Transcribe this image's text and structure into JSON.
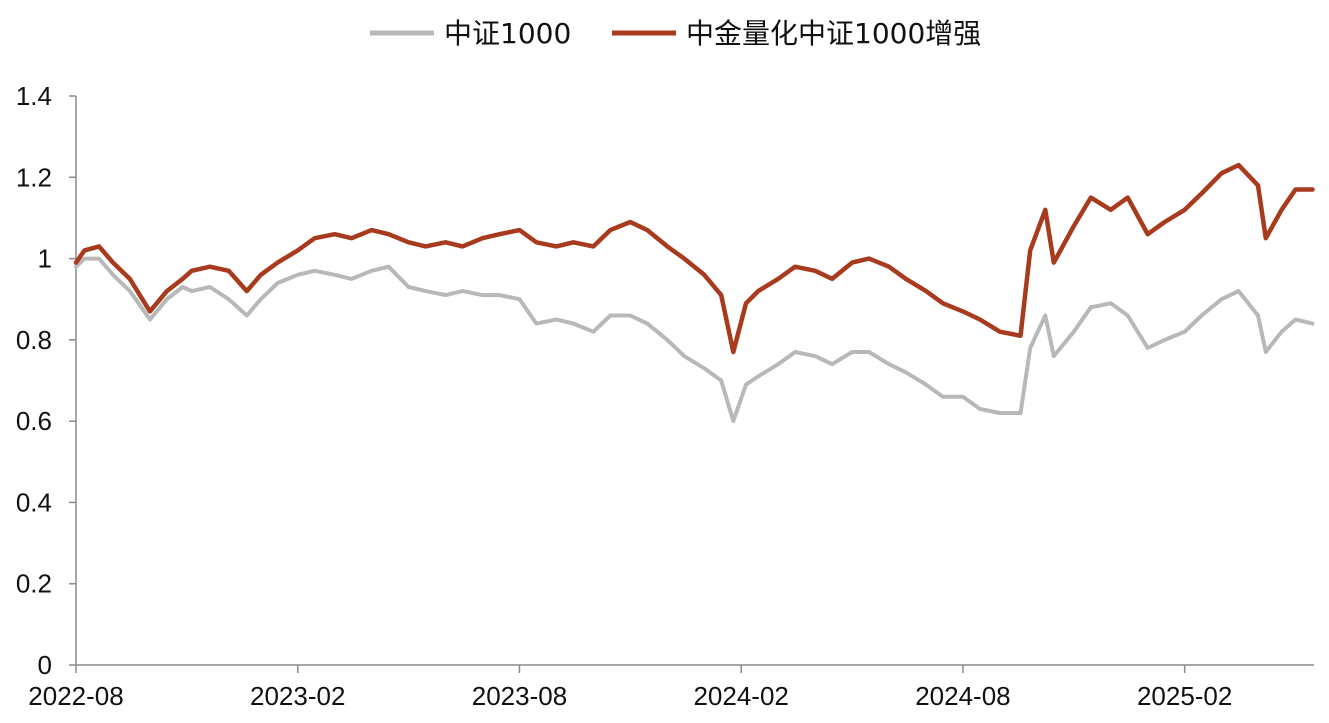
{
  "chart_data": {
    "type": "line",
    "title": "",
    "xlabel": "",
    "ylabel": "",
    "x_ticks": [
      "2022-08",
      "2023-02",
      "2023-08",
      "2024-02",
      "2024-08",
      "2025-02"
    ],
    "x_range": [
      "2022-08",
      "2025-05"
    ],
    "ylim": [
      0,
      1.4
    ],
    "y_ticks": [
      0,
      0.2,
      0.4,
      0.6,
      0.8,
      1,
      1.2,
      1.4
    ],
    "y_tick_labels": [
      "0",
      "0.2",
      "0.4",
      "0.6",
      "0.8",
      "1",
      "1.2",
      "1.4"
    ],
    "grid": false,
    "legend": "top-center",
    "series": [
      {
        "name": "中证1000",
        "color": "#b8b8b8",
        "x": [
          "2022-08-01",
          "2022-08-08",
          "2022-08-20",
          "2022-09-01",
          "2022-09-15",
          "2022-10-01",
          "2022-10-15",
          "2022-10-28",
          "2022-11-05",
          "2022-11-20",
          "2022-12-05",
          "2022-12-20",
          "2023-01-01",
          "2023-01-15",
          "2023-02-01",
          "2023-02-15",
          "2023-03-01",
          "2023-03-15",
          "2023-04-01",
          "2023-04-15",
          "2023-05-01",
          "2023-05-15",
          "2023-06-01",
          "2023-06-15",
          "2023-07-01",
          "2023-07-15",
          "2023-08-01",
          "2023-08-15",
          "2023-09-01",
          "2023-09-15",
          "2023-10-01",
          "2023-10-15",
          "2023-11-01",
          "2023-11-15",
          "2023-12-01",
          "2023-12-15",
          "2024-01-01",
          "2024-01-15",
          "2024-01-25",
          "2024-02-05",
          "2024-02-15",
          "2024-03-01",
          "2024-03-15",
          "2024-04-01",
          "2024-04-15",
          "2024-05-01",
          "2024-05-15",
          "2024-06-01",
          "2024-06-15",
          "2024-07-01",
          "2024-07-15",
          "2024-08-01",
          "2024-08-15",
          "2024-09-01",
          "2024-09-18",
          "2024-09-26",
          "2024-10-08",
          "2024-10-15",
          "2024-11-01",
          "2024-11-15",
          "2024-12-01",
          "2024-12-15",
          "2025-01-01",
          "2025-01-15",
          "2025-02-01",
          "2025-02-15",
          "2025-03-01",
          "2025-03-15",
          "2025-03-31",
          "2025-04-07",
          "2025-04-20",
          "2025-05-01",
          "2025-05-15"
        ],
        "values": [
          0.98,
          1.0,
          1.0,
          0.96,
          0.92,
          0.85,
          0.9,
          0.93,
          0.92,
          0.93,
          0.9,
          0.86,
          0.9,
          0.94,
          0.96,
          0.97,
          0.96,
          0.95,
          0.97,
          0.98,
          0.93,
          0.92,
          0.91,
          0.92,
          0.91,
          0.91,
          0.9,
          0.84,
          0.85,
          0.84,
          0.82,
          0.86,
          0.86,
          0.84,
          0.8,
          0.76,
          0.73,
          0.7,
          0.6,
          0.69,
          0.71,
          0.74,
          0.77,
          0.76,
          0.74,
          0.77,
          0.77,
          0.74,
          0.72,
          0.69,
          0.66,
          0.66,
          0.63,
          0.62,
          0.62,
          0.78,
          0.86,
          0.76,
          0.82,
          0.88,
          0.89,
          0.86,
          0.78,
          0.8,
          0.82,
          0.86,
          0.9,
          0.92,
          0.86,
          0.77,
          0.82,
          0.85,
          0.84
        ]
      },
      {
        "name": "中金量化中证1000增强",
        "color": "#a83a1e",
        "x": [
          "2022-08-01",
          "2022-08-08",
          "2022-08-20",
          "2022-09-01",
          "2022-09-15",
          "2022-10-01",
          "2022-10-15",
          "2022-10-28",
          "2022-11-05",
          "2022-11-20",
          "2022-12-05",
          "2022-12-20",
          "2023-01-01",
          "2023-01-15",
          "2023-02-01",
          "2023-02-15",
          "2023-03-01",
          "2023-03-15",
          "2023-04-01",
          "2023-04-15",
          "2023-05-01",
          "2023-05-15",
          "2023-06-01",
          "2023-06-15",
          "2023-07-01",
          "2023-07-15",
          "2023-08-01",
          "2023-08-15",
          "2023-09-01",
          "2023-09-15",
          "2023-10-01",
          "2023-10-15",
          "2023-11-01",
          "2023-11-15",
          "2023-12-01",
          "2023-12-15",
          "2024-01-01",
          "2024-01-15",
          "2024-01-25",
          "2024-02-05",
          "2024-02-15",
          "2024-03-01",
          "2024-03-15",
          "2024-04-01",
          "2024-04-15",
          "2024-05-01",
          "2024-05-15",
          "2024-06-01",
          "2024-06-15",
          "2024-07-01",
          "2024-07-15",
          "2024-08-01",
          "2024-08-15",
          "2024-09-01",
          "2024-09-18",
          "2024-09-26",
          "2024-10-08",
          "2024-10-15",
          "2024-11-01",
          "2024-11-15",
          "2024-12-01",
          "2024-12-15",
          "2025-01-01",
          "2025-01-15",
          "2025-02-01",
          "2025-02-15",
          "2025-03-01",
          "2025-03-15",
          "2025-03-31",
          "2025-04-07",
          "2025-04-20",
          "2025-05-01",
          "2025-05-15"
        ],
        "values": [
          0.99,
          1.02,
          1.03,
          0.99,
          0.95,
          0.87,
          0.92,
          0.95,
          0.97,
          0.98,
          0.97,
          0.92,
          0.96,
          0.99,
          1.02,
          1.05,
          1.06,
          1.05,
          1.07,
          1.06,
          1.04,
          1.03,
          1.04,
          1.03,
          1.05,
          1.06,
          1.07,
          1.04,
          1.03,
          1.04,
          1.03,
          1.07,
          1.09,
          1.07,
          1.03,
          1.0,
          0.96,
          0.91,
          0.77,
          0.89,
          0.92,
          0.95,
          0.98,
          0.97,
          0.95,
          0.99,
          1.0,
          0.98,
          0.95,
          0.92,
          0.89,
          0.87,
          0.85,
          0.82,
          0.81,
          1.02,
          1.12,
          0.99,
          1.08,
          1.15,
          1.12,
          1.15,
          1.06,
          1.09,
          1.12,
          1.16,
          1.21,
          1.23,
          1.18,
          1.05,
          1.12,
          1.17,
          1.17
        ]
      }
    ]
  }
}
